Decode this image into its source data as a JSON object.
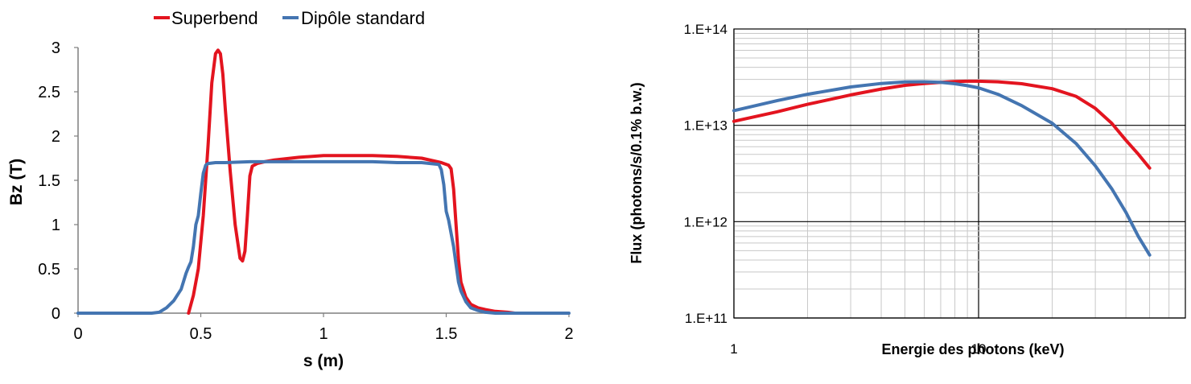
{
  "chart_data": [
    {
      "type": "line",
      "title": "",
      "xlabel": "s (m)",
      "ylabel": "Bz (T)",
      "xlim": [
        0,
        2
      ],
      "ylim": [
        0,
        3
      ],
      "xticks": [
        "0",
        "0.5",
        "1",
        "1.5",
        "2"
      ],
      "yticks": [
        "0",
        "0.5",
        "1",
        "1.5",
        "2",
        "2.5",
        "3"
      ],
      "grid": false,
      "legend": "top",
      "series": [
        {
          "name": "Superbend",
          "color": "#e3141f",
          "x": [
            0.45,
            0.47,
            0.49,
            0.51,
            0.53,
            0.545,
            0.56,
            0.57,
            0.58,
            0.59,
            0.6,
            0.62,
            0.64,
            0.66,
            0.67,
            0.68,
            0.69,
            0.7,
            0.71,
            0.73,
            0.76,
            0.8,
            0.9,
            1.0,
            1.1,
            1.2,
            1.3,
            1.4,
            1.48,
            1.51,
            1.52,
            1.53,
            1.54,
            1.55,
            1.56,
            1.58,
            1.6,
            1.63,
            1.66,
            1.7,
            1.75,
            1.78
          ],
          "y": [
            0.0,
            0.2,
            0.5,
            1.1,
            1.9,
            2.6,
            2.93,
            2.97,
            2.93,
            2.7,
            2.3,
            1.6,
            1.0,
            0.62,
            0.59,
            0.7,
            1.1,
            1.55,
            1.66,
            1.69,
            1.71,
            1.73,
            1.76,
            1.78,
            1.78,
            1.78,
            1.77,
            1.75,
            1.7,
            1.67,
            1.63,
            1.4,
            1.0,
            0.6,
            0.35,
            0.18,
            0.1,
            0.06,
            0.04,
            0.02,
            0.01,
            0.0
          ]
        },
        {
          "name": "Dipôle standard",
          "color": "#4475b1",
          "x": [
            0.0,
            0.3,
            0.33,
            0.36,
            0.39,
            0.42,
            0.44,
            0.45,
            0.46,
            0.47,
            0.48,
            0.49,
            0.5,
            0.51,
            0.52,
            0.53,
            0.56,
            0.6,
            0.7,
            0.8,
            0.9,
            1.0,
            1.1,
            1.2,
            1.3,
            1.4,
            1.47,
            1.48,
            1.49,
            1.5,
            1.51,
            1.52,
            1.53,
            1.54,
            1.55,
            1.56,
            1.58,
            1.6,
            1.63,
            1.66,
            1.7,
            2.0
          ],
          "y": [
            0.0,
            0.0,
            0.01,
            0.06,
            0.14,
            0.27,
            0.45,
            0.52,
            0.58,
            0.75,
            1.0,
            1.1,
            1.35,
            1.58,
            1.67,
            1.69,
            1.7,
            1.7,
            1.71,
            1.71,
            1.71,
            1.71,
            1.71,
            1.71,
            1.7,
            1.7,
            1.68,
            1.62,
            1.45,
            1.15,
            1.05,
            0.9,
            0.75,
            0.55,
            0.35,
            0.25,
            0.13,
            0.06,
            0.03,
            0.01,
            0.0,
            0.0
          ]
        }
      ]
    },
    {
      "type": "line",
      "title": "",
      "xlabel": "Energie des photons (keV)",
      "ylabel": "Flux (photons/s/0.1% b.w.)",
      "xscale": "log",
      "yscale": "log",
      "xlim": [
        1,
        70
      ],
      "ylim": [
        100000000000.0,
        100000000000000.0
      ],
      "xticks": [
        "1",
        "10"
      ],
      "yticks": [
        "1.E+11",
        "1.E+12",
        "1.E+13",
        "1.E+14"
      ],
      "grid": true,
      "series": [
        {
          "name": "Superbend",
          "color": "#e3141f",
          "x": [
            1,
            1.5,
            2,
            3,
            4,
            5,
            6,
            7,
            8,
            9,
            10,
            12,
            15,
            20,
            25,
            30,
            35,
            40,
            45,
            50
          ],
          "y": [
            11000000000000.0,
            13800000000000.0,
            16500000000000.0,
            20700000000000.0,
            23800000000000.0,
            26000000000000.0,
            27200000000000.0,
            28000000000000.0,
            28500000000000.0,
            28700000000000.0,
            28700000000000.0,
            28300000000000.0,
            27000000000000.0,
            24000000000000.0,
            20000000000000.0,
            15000000000000.0,
            10500000000000.0,
            7000000000000.0,
            5000000000000.0,
            3600000000000.0
          ]
        },
        {
          "name": "Dipôle standard",
          "color": "#4475b1",
          "x": [
            1,
            1.5,
            2,
            3,
            4,
            5,
            6,
            7,
            8,
            9,
            10,
            12,
            15,
            20,
            25,
            30,
            35,
            40,
            45,
            50
          ],
          "y": [
            14200000000000.0,
            18000000000000.0,
            21000000000000.0,
            25000000000000.0,
            27200000000000.0,
            28200000000000.0,
            28300000000000.0,
            28000000000000.0,
            27000000000000.0,
            25800000000000.0,
            24500000000000.0,
            21000000000000.0,
            16000000000000.0,
            10500000000000.0,
            6500000000000.0,
            3800000000000.0,
            2200000000000.0,
            1250000000000.0,
            700000000000.0,
            450000000000.0
          ]
        }
      ]
    }
  ]
}
